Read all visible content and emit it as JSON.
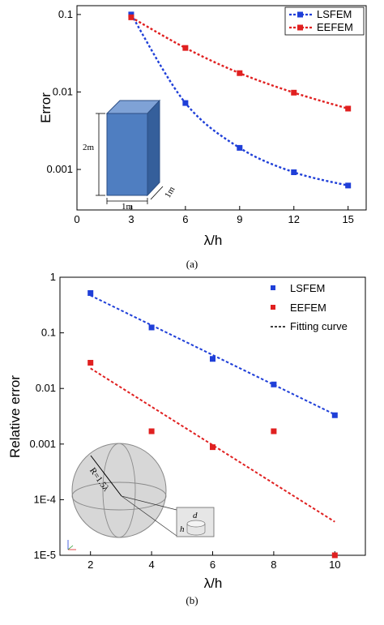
{
  "chart_data": [
    {
      "type": "line",
      "panel_label": "(a)",
      "xlabel": "λ/h",
      "ylabel": "Error",
      "xlim": [
        0,
        16
      ],
      "ylim": [
        0.0003,
        0.13
      ],
      "yscale": "log",
      "x_ticks": [
        "0",
        "3",
        "6",
        "9",
        "12",
        "15"
      ],
      "y_ticks": [
        "0.1",
        "0.01",
        "0.001"
      ],
      "legend_position": "top-right",
      "series": [
        {
          "name": "LSFEM",
          "color": "#1f3fd8",
          "x": [
            3,
            6,
            9,
            12,
            15
          ],
          "values": [
            0.1,
            0.0072,
            0.0019,
            0.00092,
            0.00062
          ]
        },
        {
          "name": "EEFEM",
          "color": "#e02020",
          "x": [
            3,
            6,
            9,
            12,
            15
          ],
          "values": [
            0.092,
            0.037,
            0.0175,
            0.0098,
            0.0061
          ]
        }
      ],
      "inset": {
        "labels": [
          "2m",
          "1m",
          "1m"
        ],
        "fill": "#4f7ec1"
      }
    },
    {
      "type": "scatter",
      "panel_label": "(b)",
      "xlabel": "λ/h",
      "ylabel": "Relative error",
      "xlim": [
        1,
        11
      ],
      "ylim": [
        1e-05,
        1
      ],
      "yscale": "log",
      "x_ticks": [
        "2",
        "4",
        "6",
        "8",
        "10"
      ],
      "y_ticks": [
        "1",
        "0.1",
        "0.01",
        "0.001",
        "1E-4",
        "1E-5"
      ],
      "legend_position": "top-right",
      "series": [
        {
          "name": "LSFEM",
          "color": "#1f3fd8",
          "x": [
            2,
            4,
            6,
            8,
            10
          ],
          "values": [
            0.52,
            0.125,
            0.034,
            0.0118,
            0.0033
          ]
        },
        {
          "name": "EEFEM",
          "color": "#e02020",
          "x": [
            2,
            4,
            6,
            8,
            10
          ],
          "values": [
            0.029,
            0.0017,
            0.00088,
            0.0017,
            1e-05
          ]
        }
      ],
      "fits": [
        {
          "color": "#1f3fd8",
          "x": [
            2,
            10
          ],
          "values": [
            0.47,
            0.0034
          ]
        },
        {
          "color": "#e02020",
          "x": [
            2,
            10
          ],
          "values": [
            0.023,
            4e-05
          ]
        }
      ],
      "legend_fit_label": "Fitting curve",
      "inset": {
        "labels": [
          "R=1.5λ",
          "d",
          "h"
        ]
      }
    }
  ]
}
